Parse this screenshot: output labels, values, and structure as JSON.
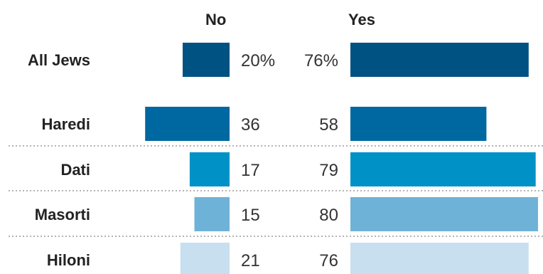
{
  "chart_data": {
    "type": "bar",
    "layout": "diverging",
    "headers": {
      "no": "No",
      "yes": "Yes"
    },
    "categories": [
      "All Jews",
      "Haredi",
      "Dati",
      "Masorti",
      "Hiloni"
    ],
    "series": [
      {
        "name": "No",
        "values": [
          20,
          36,
          17,
          15,
          21
        ],
        "labels": [
          "20%",
          "36",
          "17",
          "15",
          "21"
        ]
      },
      {
        "name": "Yes",
        "values": [
          76,
          58,
          79,
          80,
          76
        ],
        "labels": [
          "76%",
          "58",
          "79",
          "80",
          "76"
        ]
      }
    ],
    "colors": [
      "#005282",
      "#0068a0",
      "#0092c6",
      "#6fb2d8",
      "#c8dff0"
    ],
    "separator_color": "#9a9a9a"
  }
}
